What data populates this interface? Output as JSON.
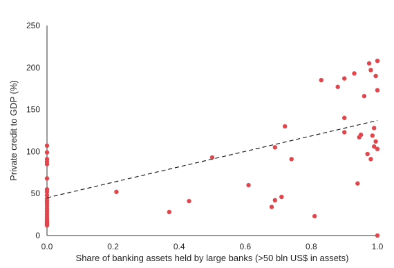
{
  "chart_data": {
    "type": "scatter",
    "title": "",
    "xlabel": "Share of banking assets held by large banks (>50 bln US$ in assets)",
    "ylabel": "Private credit to GDP (%)",
    "xlim": [
      0,
      1
    ],
    "ylim": [
      0,
      250
    ],
    "xticks": [
      "0.0",
      "0.2",
      "0.4",
      "0.6",
      "0.8",
      "1.0"
    ],
    "yticks": [
      "0",
      "50",
      "100",
      "150",
      "200",
      "250"
    ],
    "grid": false,
    "marker_color": "#e0474c",
    "trendline": {
      "style": "dashed",
      "color": "#222222",
      "x": [
        0,
        1
      ],
      "y": [
        45,
        137
      ]
    },
    "series": [
      {
        "x": [
          0.0,
          0.0,
          0.0,
          0.0,
          0.0,
          0.0,
          0.0,
          0.0,
          0.0,
          0.0,
          0.0,
          0.0,
          0.0,
          0.0,
          0.0,
          0.0,
          0.0,
          0.0,
          0.0,
          0.0,
          0.0,
          0.0,
          0.0,
          0.0,
          0.21,
          0.37,
          0.43,
          0.5,
          0.61,
          0.68,
          0.69,
          0.69,
          0.71,
          0.72,
          0.74,
          0.81,
          0.83,
          0.88,
          0.9,
          0.9,
          0.9,
          0.93,
          0.94,
          0.945,
          0.95,
          0.96,
          0.97,
          0.975,
          0.98,
          0.98,
          0.985,
          0.99,
          0.99,
          0.995,
          0.995,
          1.0,
          1.0,
          1.0,
          1.0
        ],
        "y": [
          107,
          99,
          91,
          88,
          85,
          68,
          55,
          52,
          48,
          44,
          41,
          38,
          35,
          32,
          29,
          26,
          23,
          20,
          18,
          16,
          15,
          14,
          13,
          12,
          52,
          28,
          41,
          93,
          60,
          34,
          42,
          105,
          46,
          130,
          91,
          23,
          185,
          177,
          140,
          187,
          123,
          193,
          62,
          117,
          120,
          166,
          97,
          205,
          91,
          197,
          119,
          128,
          106,
          112,
          190,
          208,
          173,
          103,
          0
        ]
      }
    ]
  }
}
